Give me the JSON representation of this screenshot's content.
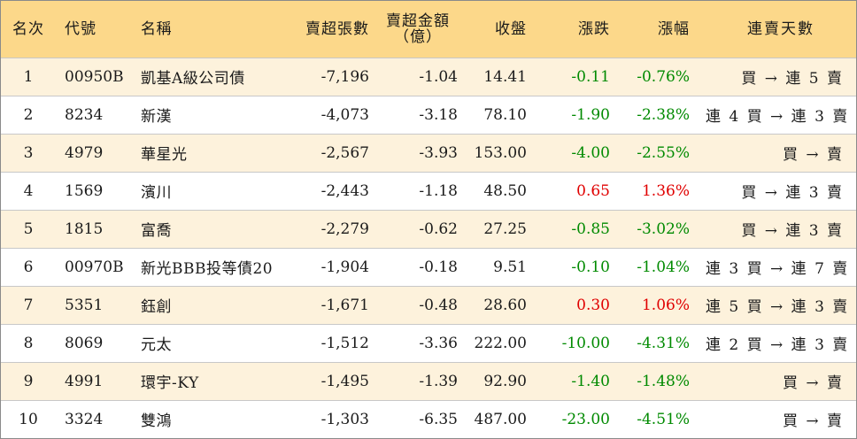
{
  "columns": {
    "rank": "名次",
    "code": "代號",
    "name": "名稱",
    "sell_volume": "賣超張數",
    "sell_amount_line1": "賣超金額",
    "sell_amount_line2": "（億）",
    "close": "收盤",
    "change": "漲跌",
    "change_pct": "漲幅",
    "streak": "連賣天數"
  },
  "rows": [
    {
      "rank": "1",
      "code": "00950B",
      "name": "凱基A級公司債",
      "sell_volume": "-7,196",
      "sell_amount": "-1.04",
      "close": "14.41",
      "change": "-0.11",
      "change_pct": "-0.76%",
      "direction": "down",
      "streak": "買 → 連 5 賣"
    },
    {
      "rank": "2",
      "code": "8234",
      "name": "新漢",
      "sell_volume": "-4,073",
      "sell_amount": "-3.18",
      "close": "78.10",
      "change": "-1.90",
      "change_pct": "-2.38%",
      "direction": "down",
      "streak": "連 4 買 → 連 3 賣"
    },
    {
      "rank": "3",
      "code": "4979",
      "name": "華星光",
      "sell_volume": "-2,567",
      "sell_amount": "-3.93",
      "close": "153.00",
      "change": "-4.00",
      "change_pct": "-2.55%",
      "direction": "down",
      "streak": "買 → 賣"
    },
    {
      "rank": "4",
      "code": "1569",
      "name": "濱川",
      "sell_volume": "-2,443",
      "sell_amount": "-1.18",
      "close": "48.50",
      "change": "0.65",
      "change_pct": "1.36%",
      "direction": "up",
      "streak": "買 → 連 3 賣"
    },
    {
      "rank": "5",
      "code": "1815",
      "name": "富喬",
      "sell_volume": "-2,279",
      "sell_amount": "-0.62",
      "close": "27.25",
      "change": "-0.85",
      "change_pct": "-3.02%",
      "direction": "down",
      "streak": "買 → 連 3 賣"
    },
    {
      "rank": "6",
      "code": "00970B",
      "name": "新光BBB投等債20",
      "sell_volume": "-1,904",
      "sell_amount": "-0.18",
      "close": "9.51",
      "change": "-0.10",
      "change_pct": "-1.04%",
      "direction": "down",
      "streak": "連 3 買 → 連 7 賣"
    },
    {
      "rank": "7",
      "code": "5351",
      "name": "鈺創",
      "sell_volume": "-1,671",
      "sell_amount": "-0.48",
      "close": "28.60",
      "change": "0.30",
      "change_pct": "1.06%",
      "direction": "up",
      "streak": "連 5 買 → 連 3 賣"
    },
    {
      "rank": "8",
      "code": "8069",
      "name": "元太",
      "sell_volume": "-1,512",
      "sell_amount": "-3.36",
      "close": "222.00",
      "change": "-10.00",
      "change_pct": "-4.31%",
      "direction": "down",
      "streak": "連 2 買 → 連 3 賣"
    },
    {
      "rank": "9",
      "code": "4991",
      "name": "環宇-KY",
      "sell_volume": "-1,495",
      "sell_amount": "-1.39",
      "close": "92.90",
      "change": "-1.40",
      "change_pct": "-1.48%",
      "direction": "down",
      "streak": "買 → 賣"
    },
    {
      "rank": "10",
      "code": "3324",
      "name": "雙鴻",
      "sell_volume": "-1,303",
      "sell_amount": "-6.35",
      "close": "487.00",
      "change": "-23.00",
      "change_pct": "-4.51%",
      "direction": "down",
      "streak": "買 → 賣"
    }
  ],
  "colors": {
    "header_bg": "#fcd88a",
    "odd_row_bg": "#fdf2dc",
    "even_row_bg": "#ffffff",
    "up": "#e00000",
    "down": "#008a00"
  }
}
